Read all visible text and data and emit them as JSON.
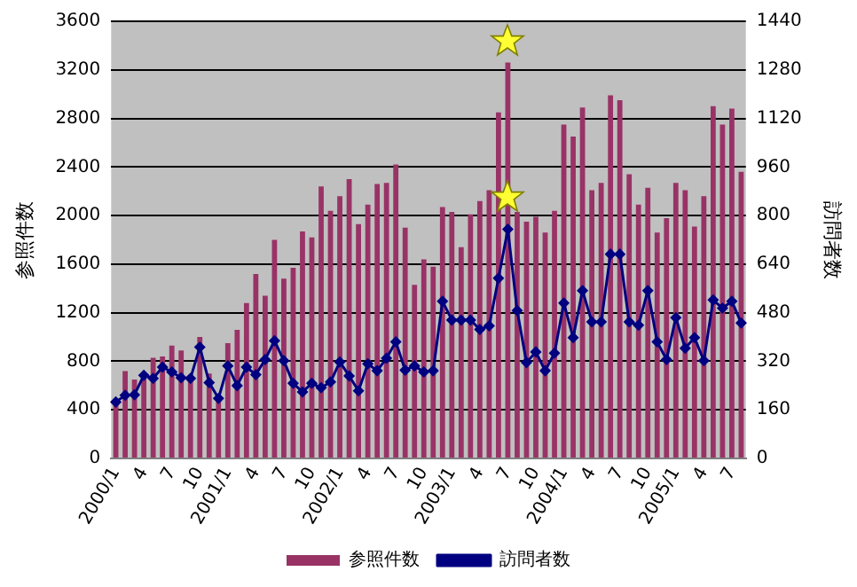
{
  "chart_data": {
    "type": "bar",
    "ylabel": "参照件数",
    "y2label": "訪問者数",
    "categories": [
      "2000/1",
      null,
      null,
      "4",
      null,
      null,
      "7",
      null,
      null,
      "10",
      null,
      null,
      "2001/1",
      null,
      null,
      "4",
      null,
      null,
      "7",
      null,
      null,
      "10",
      null,
      null,
      "2002/1",
      null,
      null,
      "4",
      null,
      null,
      "7",
      null,
      null,
      "10",
      null,
      null,
      "2003/1",
      null,
      null,
      "4",
      null,
      null,
      "7",
      null,
      null,
      "10",
      null,
      null,
      "2004/1",
      null,
      null,
      "4",
      null,
      null,
      "7",
      null,
      null,
      "10",
      null,
      null,
      "2005/1",
      null,
      null,
      "4",
      null,
      null,
      "7",
      null
    ],
    "series": [
      {
        "name": "参照件数",
        "color": "#993366",
        "values": [
          460,
          720,
          650,
          700,
          830,
          840,
          930,
          890,
          660,
          1000,
          700,
          480,
          950,
          1060,
          1280,
          1520,
          1340,
          1800,
          1480,
          1570,
          1870,
          1820,
          2240,
          2040,
          2160,
          2300,
          1930,
          2090,
          2260,
          2270,
          2420,
          1900,
          1430,
          1640,
          1580,
          2070,
          2030,
          1740,
          2010,
          2120,
          2210,
          2850,
          3260,
          2030,
          1950,
          1990,
          1860,
          2040,
          2750,
          2650,
          2890,
          2210,
          2270,
          2990,
          2950,
          2340,
          2090,
          2230,
          1860,
          1980,
          2270,
          2210,
          1910,
          2160,
          2900,
          2750,
          2880,
          2360
        ]
      },
      {
        "name": "訪問者数",
        "type": "line",
        "axis": "y2",
        "color": "#000080",
        "values": [
          186,
          208,
          210,
          274,
          264,
          301,
          285,
          266,
          264,
          367,
          250,
          198,
          305,
          240,
          301,
          276,
          326,
          388,
          322,
          248,
          219,
          248,
          233,
          252,
          318,
          272,
          223,
          312,
          289,
          330,
          384,
          291,
          305,
          285,
          289,
          518,
          456,
          456,
          456,
          425,
          437,
          594,
          755,
          487,
          316,
          351,
          289,
          347,
          512,
          398,
          553,
          450,
          450,
          673,
          673,
          450,
          439,
          553,
          384,
          326,
          464,
          363,
          398,
          322,
          522,
          495,
          518,
          446
        ]
      }
    ],
    "ylim": [
      0,
      3600
    ],
    "yticks": [
      0,
      400,
      800,
      1200,
      1600,
      2000,
      2400,
      2800,
      3200,
      3600
    ],
    "y2lim": [
      0,
      1440
    ],
    "y2ticks": [
      0,
      160,
      320,
      480,
      640,
      800,
      960,
      1120,
      1280,
      1440
    ],
    "grid": "y",
    "legend": "bottom",
    "marker": "diamond"
  }
}
